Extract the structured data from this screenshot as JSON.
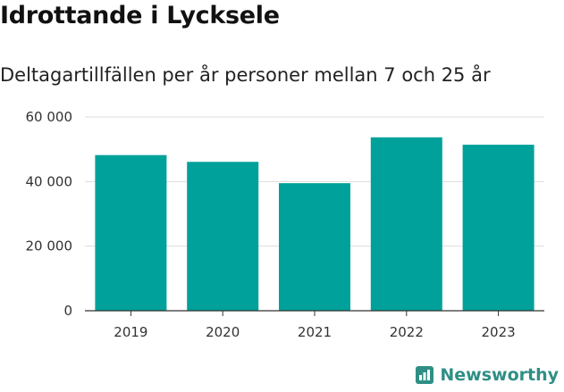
{
  "header": {
    "title": "Idrottande i Lycksele",
    "subtitle": "Deltagartillfällen per år personer mellan 7 och 25 år"
  },
  "brand": {
    "name": "Newsworthy",
    "icon": "newsworthy-logo-icon",
    "color": "#2f8f86"
  },
  "colors": {
    "bar": "#00a19a",
    "grid": "#dddddd",
    "axis": "#333333"
  },
  "chart_data": {
    "type": "bar",
    "title": "Idrottande i Lycksele",
    "subtitle": "Deltagartillfällen per år personer mellan 7 och 25 år",
    "categories": [
      "2019",
      "2020",
      "2021",
      "2022",
      "2023"
    ],
    "values": [
      48200,
      46100,
      39500,
      53700,
      51400
    ],
    "ylim": [
      0,
      60000
    ],
    "yticks": [
      0,
      20000,
      40000,
      60000
    ],
    "ytick_labels": [
      "0",
      "20 000",
      "40 000",
      "60 000"
    ],
    "xlabel": "",
    "ylabel": "",
    "grid": true,
    "legend": "none"
  }
}
